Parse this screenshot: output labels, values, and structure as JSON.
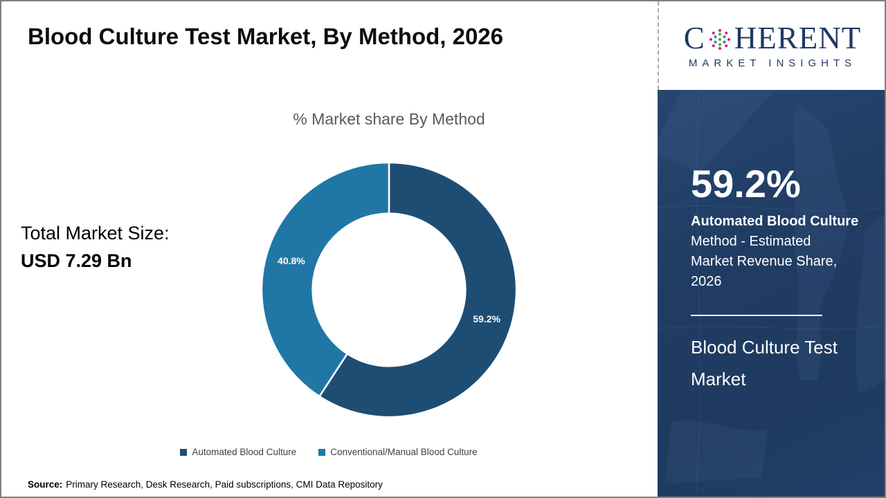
{
  "page": {
    "title": "Blood Culture Test Market, By Method, 2026",
    "source_label": "Source:",
    "source_text": "Primary Research, Desk Research, Paid subscriptions, CMI Data Repository"
  },
  "brand": {
    "logo_prefix": "C",
    "logo_suffix": "HERENT",
    "tagline": "MARKET INSIGHTS",
    "color": "#1F3864"
  },
  "left_panel": {
    "total_market_label": "Total Market Size:",
    "total_market_value": "USD 7.29 Bn"
  },
  "chart_data": {
    "type": "pie",
    "variant": "donut",
    "title": "% Market share By Method",
    "categories": [
      "Automated Blood Culture",
      "Conventional/Manual Blood Culture"
    ],
    "values": [
      59.2,
      40.8
    ],
    "labels": [
      "59.2%",
      "40.8%"
    ],
    "colors": [
      "#1E4D74",
      "#2077A5"
    ],
    "start_angle_deg": 0,
    "direction": "clockwise",
    "inner_radius_ratio": 0.6,
    "legend_position": "bottom"
  },
  "sidebar": {
    "stat_value": "59.2%",
    "stat_desc_lines": [
      "Automated Blood Culture",
      "Method - Estimated",
      "Market Revenue Share,",
      "2026"
    ],
    "report_title_lines": [
      "Blood Culture Test",
      "Market"
    ],
    "background_color": "#1F3A60",
    "divider_color": "#FFFFFF"
  }
}
